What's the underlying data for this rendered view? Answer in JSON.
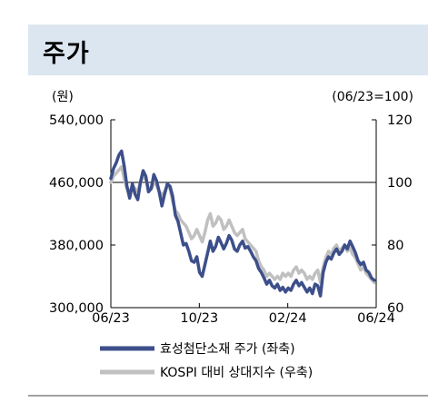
{
  "header": {
    "title": "주가"
  },
  "chart_data": {
    "type": "line",
    "left_unit": "(원)",
    "right_unit": "(06/23=100)",
    "x_ticks": [
      "06/23",
      "10/23",
      "02/24",
      "06/24"
    ],
    "y_left": {
      "range": [
        300000,
        540000
      ],
      "ticks": [
        "540,000",
        "460,000",
        "380,000",
        "300,000"
      ]
    },
    "y_right": {
      "range": [
        60,
        120
      ],
      "ticks": [
        "120",
        "100",
        "80",
        "60"
      ]
    },
    "reference_line": 100,
    "x_range": [
      "2023-06-01",
      "2024-06-30"
    ],
    "series": [
      {
        "name": "효성첨단소재 주가 (좌축)",
        "axis": "left",
        "color": "#3d4f8a",
        "points": [
          [
            "2023-06-01",
            465000
          ],
          [
            "2023-06-05",
            478000
          ],
          [
            "2023-06-09",
            485000
          ],
          [
            "2023-06-13",
            495000
          ],
          [
            "2023-06-17",
            500000
          ],
          [
            "2023-06-21",
            480000
          ],
          [
            "2023-06-25",
            455000
          ],
          [
            "2023-06-29",
            440000
          ],
          [
            "2023-07-03",
            458000
          ],
          [
            "2023-07-07",
            445000
          ],
          [
            "2023-07-11",
            438000
          ],
          [
            "2023-07-15",
            460000
          ],
          [
            "2023-07-19",
            475000
          ],
          [
            "2023-07-23",
            468000
          ],
          [
            "2023-07-27",
            448000
          ],
          [
            "2023-07-31",
            452000
          ],
          [
            "2023-08-04",
            470000
          ],
          [
            "2023-08-08",
            462000
          ],
          [
            "2023-08-12",
            448000
          ],
          [
            "2023-08-16",
            430000
          ],
          [
            "2023-08-20",
            445000
          ],
          [
            "2023-08-24",
            458000
          ],
          [
            "2023-08-28",
            455000
          ],
          [
            "2023-09-01",
            442000
          ],
          [
            "2023-09-05",
            418000
          ],
          [
            "2023-09-09",
            410000
          ],
          [
            "2023-09-13",
            395000
          ],
          [
            "2023-09-17",
            380000
          ],
          [
            "2023-09-21",
            382000
          ],
          [
            "2023-09-25",
            372000
          ],
          [
            "2023-09-29",
            360000
          ],
          [
            "2023-10-03",
            358000
          ],
          [
            "2023-10-07",
            365000
          ],
          [
            "2023-10-11",
            345000
          ],
          [
            "2023-10-15",
            340000
          ],
          [
            "2023-10-19",
            355000
          ],
          [
            "2023-10-23",
            370000
          ],
          [
            "2023-10-27",
            385000
          ],
          [
            "2023-10-31",
            372000
          ],
          [
            "2023-11-04",
            378000
          ],
          [
            "2023-11-08",
            390000
          ],
          [
            "2023-11-12",
            383000
          ],
          [
            "2023-11-16",
            375000
          ],
          [
            "2023-11-20",
            382000
          ],
          [
            "2023-11-24",
            392000
          ],
          [
            "2023-11-28",
            386000
          ],
          [
            "2023-12-02",
            375000
          ],
          [
            "2023-12-06",
            372000
          ],
          [
            "2023-12-10",
            380000
          ],
          [
            "2023-12-14",
            385000
          ],
          [
            "2023-12-18",
            376000
          ],
          [
            "2023-12-22",
            378000
          ],
          [
            "2023-12-26",
            372000
          ],
          [
            "2023-12-30",
            365000
          ],
          [
            "2024-01-03",
            360000
          ],
          [
            "2024-01-07",
            350000
          ],
          [
            "2024-01-11",
            345000
          ],
          [
            "2024-01-15",
            338000
          ],
          [
            "2024-01-19",
            330000
          ],
          [
            "2024-01-23",
            335000
          ],
          [
            "2024-01-27",
            328000
          ],
          [
            "2024-01-31",
            325000
          ],
          [
            "2024-02-04",
            330000
          ],
          [
            "2024-02-08",
            322000
          ],
          [
            "2024-02-12",
            326000
          ],
          [
            "2024-02-16",
            320000
          ],
          [
            "2024-02-20",
            325000
          ],
          [
            "2024-02-24",
            322000
          ],
          [
            "2024-02-28",
            330000
          ],
          [
            "2024-03-03",
            335000
          ],
          [
            "2024-03-07",
            328000
          ],
          [
            "2024-03-11",
            332000
          ],
          [
            "2024-03-15",
            326000
          ],
          [
            "2024-03-19",
            320000
          ],
          [
            "2024-03-23",
            325000
          ],
          [
            "2024-03-27",
            318000
          ],
          [
            "2024-03-31",
            330000
          ],
          [
            "2024-04-04",
            328000
          ],
          [
            "2024-04-08",
            315000
          ],
          [
            "2024-04-12",
            345000
          ],
          [
            "2024-04-16",
            358000
          ],
          [
            "2024-04-20",
            365000
          ],
          [
            "2024-04-24",
            362000
          ],
          [
            "2024-04-28",
            370000
          ],
          [
            "2024-05-02",
            375000
          ],
          [
            "2024-05-06",
            368000
          ],
          [
            "2024-05-10",
            372000
          ],
          [
            "2024-05-14",
            380000
          ],
          [
            "2024-05-18",
            375000
          ],
          [
            "2024-05-22",
            385000
          ],
          [
            "2024-05-26",
            378000
          ],
          [
            "2024-05-30",
            370000
          ],
          [
            "2024-06-03",
            360000
          ],
          [
            "2024-06-07",
            355000
          ],
          [
            "2024-06-11",
            358000
          ],
          [
            "2024-06-15",
            348000
          ],
          [
            "2024-06-19",
            345000
          ],
          [
            "2024-06-23",
            338000
          ],
          [
            "2024-06-27",
            335000
          ]
        ]
      },
      {
        "name": "KOSPI 대비 상대지수 (우축)",
        "axis": "right",
        "color": "#c0c0c0",
        "points": [
          [
            "2023-06-01",
            100
          ],
          [
            "2023-06-05",
            102
          ],
          [
            "2023-06-09",
            103
          ],
          [
            "2023-06-13",
            104
          ],
          [
            "2023-06-17",
            105
          ],
          [
            "2023-06-21",
            101
          ],
          [
            "2023-06-25",
            98
          ],
          [
            "2023-06-29",
            97
          ],
          [
            "2023-07-03",
            99
          ],
          [
            "2023-07-07",
            98
          ],
          [
            "2023-07-11",
            97
          ],
          [
            "2023-07-15",
            100
          ],
          [
            "2023-07-19",
            102
          ],
          [
            "2023-07-23",
            101
          ],
          [
            "2023-07-27",
            98
          ],
          [
            "2023-07-31",
            98
          ],
          [
            "2023-08-04",
            100
          ],
          [
            "2023-08-08",
            99
          ],
          [
            "2023-08-12",
            97
          ],
          [
            "2023-08-16",
            96
          ],
          [
            "2023-08-20",
            97
          ],
          [
            "2023-08-24",
            99
          ],
          [
            "2023-08-28",
            98
          ],
          [
            "2023-09-01",
            94
          ],
          [
            "2023-09-05",
            91
          ],
          [
            "2023-09-09",
            90
          ],
          [
            "2023-09-13",
            88
          ],
          [
            "2023-09-17",
            87
          ],
          [
            "2023-09-21",
            86
          ],
          [
            "2023-09-25",
            84
          ],
          [
            "2023-09-29",
            82
          ],
          [
            "2023-10-03",
            83
          ],
          [
            "2023-10-07",
            85
          ],
          [
            "2023-10-11",
            83
          ],
          [
            "2023-10-15",
            81
          ],
          [
            "2023-10-19",
            84
          ],
          [
            "2023-10-23",
            88
          ],
          [
            "2023-10-27",
            90
          ],
          [
            "2023-10-31",
            86
          ],
          [
            "2023-11-04",
            87
          ],
          [
            "2023-11-08",
            89
          ],
          [
            "2023-11-12",
            88
          ],
          [
            "2023-11-16",
            85
          ],
          [
            "2023-11-20",
            86
          ],
          [
            "2023-11-24",
            88
          ],
          [
            "2023-11-28",
            86
          ],
          [
            "2023-12-02",
            84
          ],
          [
            "2023-12-06",
            83
          ],
          [
            "2023-12-10",
            84
          ],
          [
            "2023-12-14",
            85
          ],
          [
            "2023-12-18",
            82
          ],
          [
            "2023-12-22",
            81
          ],
          [
            "2023-12-26",
            80
          ],
          [
            "2023-12-30",
            79
          ],
          [
            "2024-01-03",
            78
          ],
          [
            "2024-01-07",
            75
          ],
          [
            "2024-01-11",
            73
          ],
          [
            "2024-01-15",
            72
          ],
          [
            "2024-01-19",
            70
          ],
          [
            "2024-01-23",
            71
          ],
          [
            "2024-01-27",
            70
          ],
          [
            "2024-01-31",
            69
          ],
          [
            "2024-02-04",
            70
          ],
          [
            "2024-02-08",
            69
          ],
          [
            "2024-02-12",
            71
          ],
          [
            "2024-02-16",
            70
          ],
          [
            "2024-02-20",
            71
          ],
          [
            "2024-02-24",
            70
          ],
          [
            "2024-02-28",
            72
          ],
          [
            "2024-03-03",
            73
          ],
          [
            "2024-03-07",
            71
          ],
          [
            "2024-03-11",
            72
          ],
          [
            "2024-03-15",
            71
          ],
          [
            "2024-03-19",
            69
          ],
          [
            "2024-03-23",
            70
          ],
          [
            "2024-03-27",
            69
          ],
          [
            "2024-03-31",
            71
          ],
          [
            "2024-04-04",
            72
          ],
          [
            "2024-04-08",
            68
          ],
          [
            "2024-04-12",
            73
          ],
          [
            "2024-04-16",
            76
          ],
          [
            "2024-04-20",
            78
          ],
          [
            "2024-04-24",
            77
          ],
          [
            "2024-04-28",
            79
          ],
          [
            "2024-05-02",
            80
          ],
          [
            "2024-05-06",
            78
          ],
          [
            "2024-05-10",
            79
          ],
          [
            "2024-05-14",
            80
          ],
          [
            "2024-05-18",
            78
          ],
          [
            "2024-05-22",
            79
          ],
          [
            "2024-05-26",
            77
          ],
          [
            "2024-05-30",
            76
          ],
          [
            "2024-06-03",
            74
          ],
          [
            "2024-06-07",
            72
          ],
          [
            "2024-06-11",
            73
          ],
          [
            "2024-06-15",
            71
          ],
          [
            "2024-06-19",
            70
          ],
          [
            "2024-06-23",
            69
          ],
          [
            "2024-06-27",
            68
          ]
        ]
      }
    ],
    "legend_position": "bottom"
  }
}
